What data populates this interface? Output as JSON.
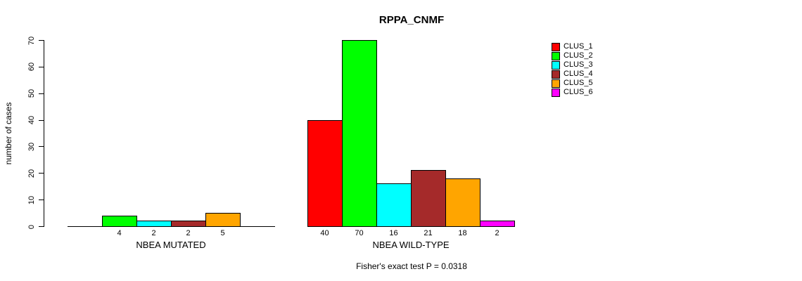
{
  "title": "RPPA_CNMF",
  "ylabel": "number of cases",
  "footer": "Fisher's exact test P = 0.0318",
  "legend": {
    "items": [
      {
        "label": "CLUS_1",
        "color": "#FF0000"
      },
      {
        "label": "CLUS_2",
        "color": "#00FF00"
      },
      {
        "label": "CLUS_3",
        "color": "#00FFFF"
      },
      {
        "label": "CLUS_4",
        "color": "#A52A2A"
      },
      {
        "label": "CLUS_5",
        "color": "#FFA500"
      },
      {
        "label": "CLUS_6",
        "color": "#FF00FF"
      }
    ]
  },
  "chart_data": {
    "type": "bar",
    "title": "RPPA_CNMF",
    "ylabel": "number of cases",
    "ylim": [
      0,
      70
    ],
    "yticks": [
      0,
      10,
      20,
      30,
      40,
      50,
      60,
      70
    ],
    "grid": false,
    "legend_position": "right",
    "series_names": [
      "CLUS_1",
      "CLUS_2",
      "CLUS_3",
      "CLUS_4",
      "CLUS_5",
      "CLUS_6"
    ],
    "series_colors": [
      "#FF0000",
      "#00FF00",
      "#00FFFF",
      "#A52A2A",
      "#FFA500",
      "#FF00FF"
    ],
    "groups": [
      {
        "label": "NBEA MUTATED",
        "values": [
          0,
          4,
          2,
          2,
          5,
          0
        ]
      },
      {
        "label": "NBEA WILD-TYPE",
        "values": [
          40,
          70,
          16,
          21,
          18,
          2
        ]
      }
    ],
    "annotation": "Fisher's exact test P = 0.0318"
  }
}
